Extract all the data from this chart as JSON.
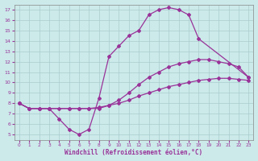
{
  "xlabel": "Windchill (Refroidissement éolien,°C)",
  "bg_color": "#cceaea",
  "line_color": "#993399",
  "marker": "D",
  "markersize": 2,
  "linewidth": 0.9,
  "xlim": [
    -0.5,
    23.5
  ],
  "ylim": [
    4.5,
    17.5
  ],
  "xticks": [
    0,
    1,
    2,
    3,
    4,
    5,
    6,
    7,
    8,
    9,
    10,
    11,
    12,
    13,
    14,
    15,
    16,
    17,
    18,
    19,
    20,
    21,
    22,
    23
  ],
  "yticks": [
    5,
    6,
    7,
    8,
    9,
    10,
    11,
    12,
    13,
    14,
    15,
    16,
    17
  ],
  "grid_color": "#aacccc",
  "curves": [
    {
      "x": [
        0,
        1,
        2,
        3,
        4,
        5,
        6,
        7,
        8,
        9,
        10,
        11,
        12,
        13,
        14,
        15,
        16,
        17,
        18,
        23
      ],
      "y": [
        8.0,
        7.5,
        7.5,
        7.5,
        6.5,
        5.5,
        5.0,
        5.5,
        8.5,
        12.5,
        13.5,
        14.5,
        15.0,
        16.5,
        17.0,
        17.2,
        17.0,
        16.5,
        14.2,
        10.5
      ]
    },
    {
      "x": [
        0,
        1,
        2,
        3,
        5,
        6,
        7,
        8,
        9,
        10,
        11,
        12,
        13,
        14,
        15,
        16,
        17,
        18,
        19,
        20,
        21,
        22,
        23
      ],
      "y": [
        8.0,
        7.5,
        7.5,
        7.5,
        7.5,
        7.5,
        7.5,
        7.5,
        7.8,
        8.3,
        9.0,
        9.8,
        10.5,
        11.0,
        11.5,
        11.8,
        12.0,
        12.2,
        12.2,
        12.0,
        11.8,
        11.5,
        10.5
      ]
    },
    {
      "x": [
        0,
        1,
        2,
        3,
        4,
        5,
        6,
        7,
        8,
        9,
        10,
        11,
        12,
        13,
        14,
        15,
        16,
        17,
        18,
        19,
        20,
        21,
        22,
        23
      ],
      "y": [
        8.0,
        7.5,
        7.5,
        7.5,
        7.5,
        7.5,
        7.5,
        7.5,
        7.6,
        7.8,
        8.0,
        8.3,
        8.7,
        9.0,
        9.3,
        9.6,
        9.8,
        10.0,
        10.2,
        10.3,
        10.4,
        10.4,
        10.3,
        10.2
      ]
    }
  ]
}
